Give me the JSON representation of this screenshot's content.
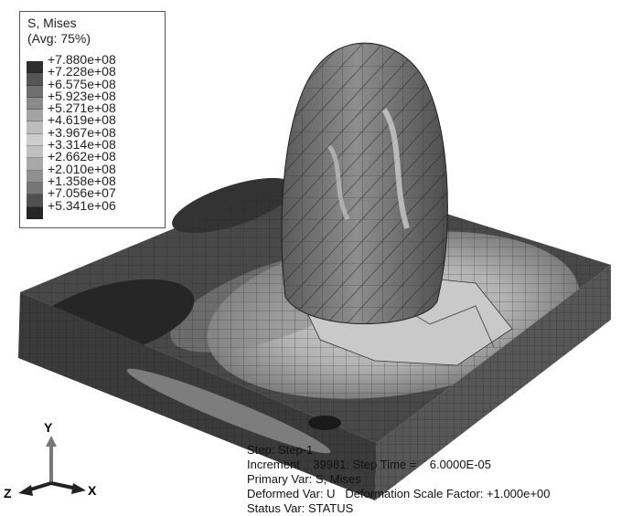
{
  "legend": {
    "title": "S, Mises",
    "subtitle": "(Avg: 75%)",
    "values": [
      "+7.880e+08",
      "+7.228e+08",
      "+6.575e+08",
      "+5.923e+08",
      "+5.271e+08",
      "+4.619e+08",
      "+3.967e+08",
      "+3.314e+08",
      "+2.662e+08",
      "+2.010e+08",
      "+1.358e+08",
      "+7.056e+07",
      "+5.341e+06"
    ],
    "colors": [
      "#2e2e2e",
      "#555555",
      "#6f6f6f",
      "#8a8a8a",
      "#a4a4a4",
      "#bcbcbc",
      "#cdcdcd",
      "#c0c0c0",
      "#a8a8a8",
      "#909090",
      "#767676",
      "#505050",
      "#262626"
    ]
  },
  "triad": {
    "y": "Y",
    "z": "Z",
    "x": "X"
  },
  "status": {
    "step": "Step: Step-1",
    "increment": "Increment    39981: Step Time =    6.0000E-05",
    "primary": "Primary Var: S, Mises",
    "deformed": "Deformed Var: U   Deformation Scale Factor: +1.000e+00",
    "statusvar": "Status Var: STATUS"
  },
  "model": {
    "colors": {
      "plate_top": "#4a4a4a",
      "plate_front": "#3a3a3a",
      "plate_side": "#5a5a5a",
      "impact_zone": "#bdbdbd",
      "projectile": "#7a7a7a",
      "hot_spot": "#1c1c1c"
    }
  }
}
